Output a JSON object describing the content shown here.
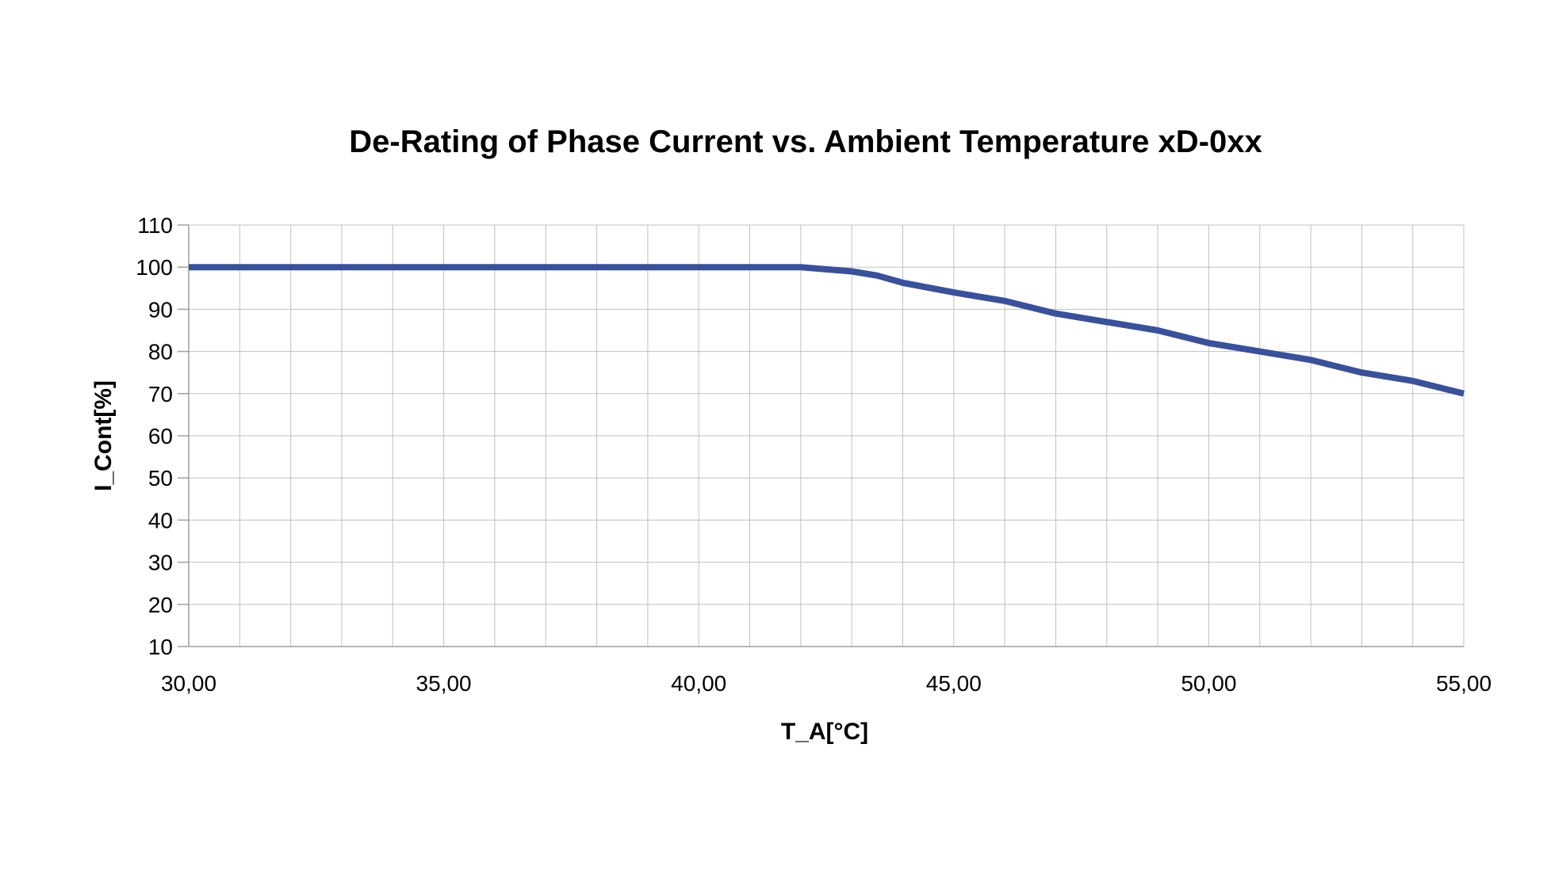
{
  "chart_data": {
    "type": "line",
    "title": "De-Rating of Phase Current vs. Ambient Temperature xD-0xx",
    "xlabel": "T_A[°C]",
    "ylabel": "I_Cont[%]",
    "xlim": [
      30,
      55
    ],
    "ylim": [
      10,
      110
    ],
    "x_ticks": [
      "30,00",
      "35,00",
      "40,00",
      "45,00",
      "50,00",
      "55,00"
    ],
    "x_tick_values": [
      30,
      35,
      40,
      45,
      50,
      55
    ],
    "y_ticks": [
      10,
      20,
      30,
      40,
      50,
      60,
      70,
      80,
      90,
      100,
      110
    ],
    "grid": true,
    "legend": "none",
    "series": [
      {
        "color": "#3a5199",
        "x": [
          30,
          31,
          32,
          33,
          34,
          35,
          36,
          37,
          38,
          39,
          40,
          41,
          42,
          43,
          43.5,
          44,
          45,
          46,
          47,
          48,
          49,
          50,
          51,
          52,
          53,
          54,
          55
        ],
        "y": [
          100,
          100,
          100,
          100,
          100,
          100,
          100,
          100,
          100,
          100,
          100,
          100,
          100,
          99,
          98,
          96.3,
          94,
          92,
          89,
          87,
          85,
          82,
          80,
          78,
          75,
          73,
          70
        ]
      }
    ]
  }
}
